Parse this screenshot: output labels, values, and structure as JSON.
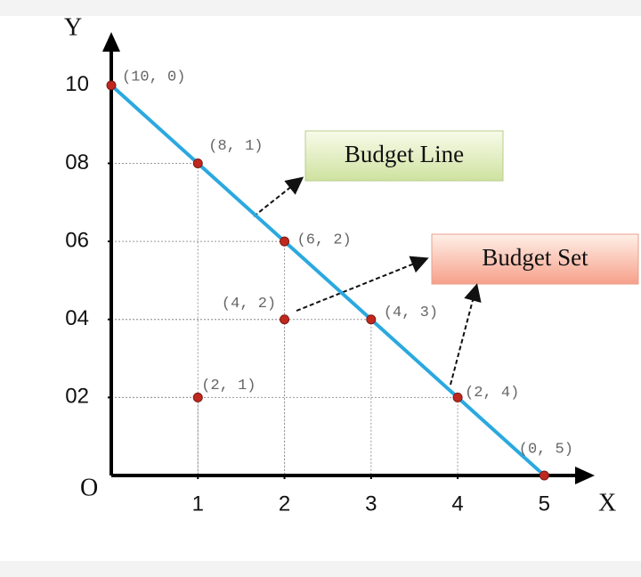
{
  "chart_data": {
    "type": "scatter",
    "x_label": "X",
    "y_label": "Y",
    "origin_label": "O",
    "xlim": [
      0,
      5.5
    ],
    "ylim": [
      0,
      11
    ],
    "xticks": [
      1,
      2,
      3,
      4,
      5
    ],
    "yticks": [
      {
        "value": 2,
        "label": "02"
      },
      {
        "value": 4,
        "label": "04"
      },
      {
        "value": 6,
        "label": "06"
      },
      {
        "value": 8,
        "label": "08"
      },
      10
    ],
    "points": {
      "color": "#c0281f",
      "x": [
        0,
        1,
        2,
        2,
        3,
        1,
        4,
        5
      ],
      "values": [
        10,
        8,
        6,
        4,
        4,
        2,
        2,
        0
      ],
      "point_labels": [
        "(10, 0)",
        "(8, 1)",
        "(6, 2)",
        "(4, 2)",
        "(4, 3)",
        "(2, 1)",
        "(2, 4)",
        "(0, 5)"
      ]
    },
    "line": {
      "color": "#2aa9df",
      "x": [
        0,
        5
      ],
      "values": [
        10,
        0
      ]
    },
    "annotations": [
      "Budget Line",
      "Budget Set"
    ]
  }
}
